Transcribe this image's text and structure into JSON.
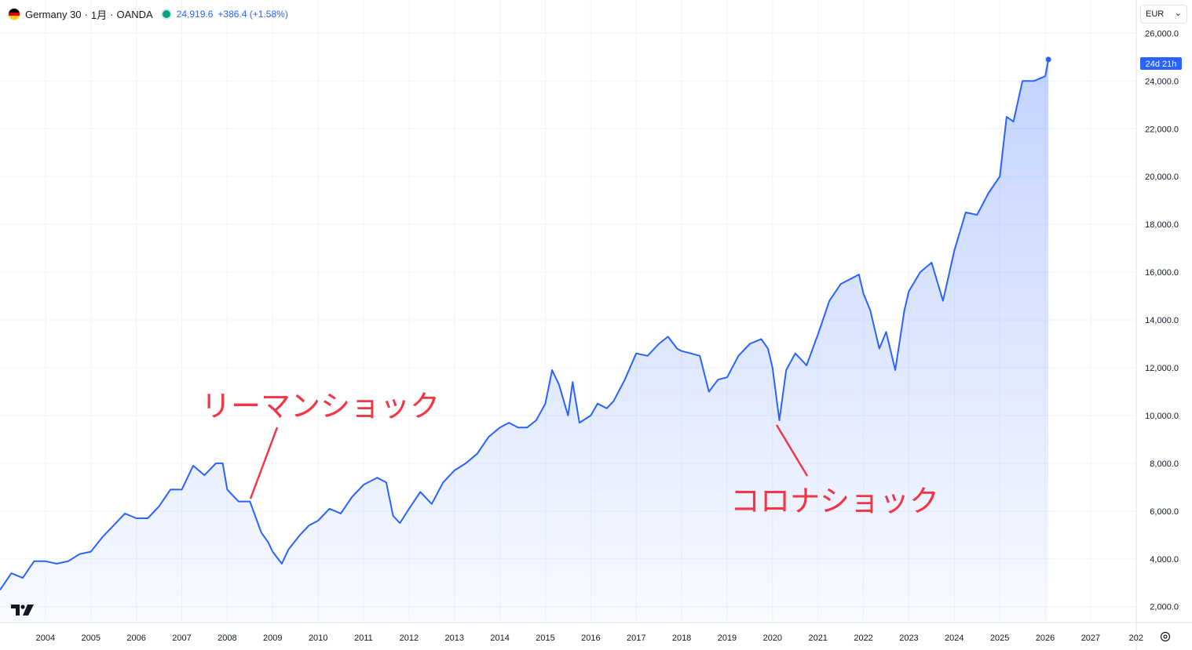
{
  "header": {
    "symbol": "Germany 30",
    "interval": "1月",
    "source": "OANDA",
    "separator": "·",
    "price": "24,919.6",
    "change": "+386.4 (+1.58%)",
    "status_color": "#0d9f82",
    "flag_colors": [
      "#000000",
      "#dd0000",
      "#ffce00"
    ]
  },
  "currency_selector": {
    "label": "EUR",
    "icon": "chevron-down-icon"
  },
  "settings": {
    "icon": "gear-icon"
  },
  "branding": {
    "logo": "tradingview-logo-icon"
  },
  "colors": {
    "line": "#2962ff",
    "annotation": "#f23645",
    "grid": "#f0f3fa",
    "axis_text": "#131722"
  },
  "chart_data": {
    "type": "area",
    "ylim": [
      1400,
      26800
    ],
    "y_ticks": [
      "26,000.0",
      "24,000.0",
      "22,000.0",
      "20,000.0",
      "18,000.0",
      "16,000.0",
      "14,000.0",
      "12,000.0",
      "10,000.0",
      "8,000.0",
      "6,000.0",
      "4,000.0",
      "2,000.0"
    ],
    "x_ticks": [
      "2004",
      "2005",
      "2006",
      "2007",
      "2008",
      "2009",
      "2010",
      "2011",
      "2012",
      "2013",
      "2014",
      "2015",
      "2016",
      "2017",
      "2018",
      "2019",
      "2020",
      "2021",
      "2022",
      "2023",
      "2024",
      "2025",
      "2026",
      "2027",
      "202"
    ],
    "last_label": "24d 21h",
    "series": [
      {
        "x": [
          2003.0,
          2003.25,
          2003.5,
          2003.75,
          2004.0,
          2004.25,
          2004.5,
          2004.75,
          2005.0,
          2005.25,
          2005.5,
          2005.75,
          2006.0,
          2006.25,
          2006.5,
          2006.75,
          2007.0,
          2007.25,
          2007.5,
          2007.75,
          2007.9,
          2008.0,
          2008.25,
          2008.5,
          2008.75,
          2008.9,
          2009.0,
          2009.2,
          2009.35,
          2009.6,
          2009.8,
          2010.0,
          2010.25,
          2010.5,
          2010.75,
          2011.0,
          2011.3,
          2011.5,
          2011.65,
          2011.8,
          2012.0,
          2012.25,
          2012.5,
          2012.75,
          2013.0,
          2013.25,
          2013.5,
          2013.75,
          2014.0,
          2014.2,
          2014.4,
          2014.6,
          2014.8,
          2015.0,
          2015.15,
          2015.3,
          2015.5,
          2015.6,
          2015.75,
          2016.0,
          2016.15,
          2016.35,
          2016.5,
          2016.75,
          2017.0,
          2017.25,
          2017.5,
          2017.7,
          2017.9,
          2018.0,
          2018.2,
          2018.4,
          2018.6,
          2018.8,
          2019.0,
          2019.25,
          2019.5,
          2019.75,
          2019.9,
          2020.0,
          2020.15,
          2020.3,
          2020.5,
          2020.75,
          2021.0,
          2021.25,
          2021.5,
          2021.7,
          2021.9,
          2022.0,
          2022.15,
          2022.35,
          2022.5,
          2022.7,
          2022.9,
          2023.0,
          2023.25,
          2023.5,
          2023.75,
          2024.0,
          2024.25,
          2024.5,
          2024.75,
          2025.0,
          2025.15,
          2025.3,
          2025.5,
          2025.75,
          2026.0,
          2026.07
        ],
        "values": [
          2700,
          3400,
          3200,
          3900,
          3900,
          3800,
          3900,
          4200,
          4300,
          4900,
          5400,
          5900,
          5700,
          5700,
          6200,
          6900,
          6900,
          7900,
          7500,
          8000,
          8000,
          6900,
          6400,
          6400,
          5100,
          4700,
          4300,
          3800,
          4400,
          5000,
          5400,
          5600,
          6100,
          5900,
          6600,
          7100,
          7400,
          7200,
          5800,
          5500,
          6100,
          6800,
          6300,
          7200,
          7700,
          8000,
          8400,
          9100,
          9500,
          9700,
          9500,
          9500,
          9800,
          10500,
          11900,
          11300,
          10000,
          11400,
          9700,
          10000,
          10500,
          10300,
          10600,
          11500,
          12600,
          12500,
          13000,
          13300,
          12800,
          12700,
          12600,
          12500,
          11000,
          11500,
          11600,
          12500,
          13000,
          13200,
          12800,
          12000,
          9800,
          11900,
          12600,
          12100,
          13400,
          14800,
          15500,
          15700,
          15900,
          15100,
          14400,
          12800,
          13500,
          11900,
          14400,
          15200,
          16000,
          16400,
          14800,
          16900,
          18500,
          18400,
          19300,
          20000,
          22500,
          22300,
          24000,
          24000,
          24200,
          24900
        ]
      }
    ],
    "annotations": [
      {
        "text": "リーマンショック"
      },
      {
        "text": "コロナショック"
      }
    ]
  }
}
